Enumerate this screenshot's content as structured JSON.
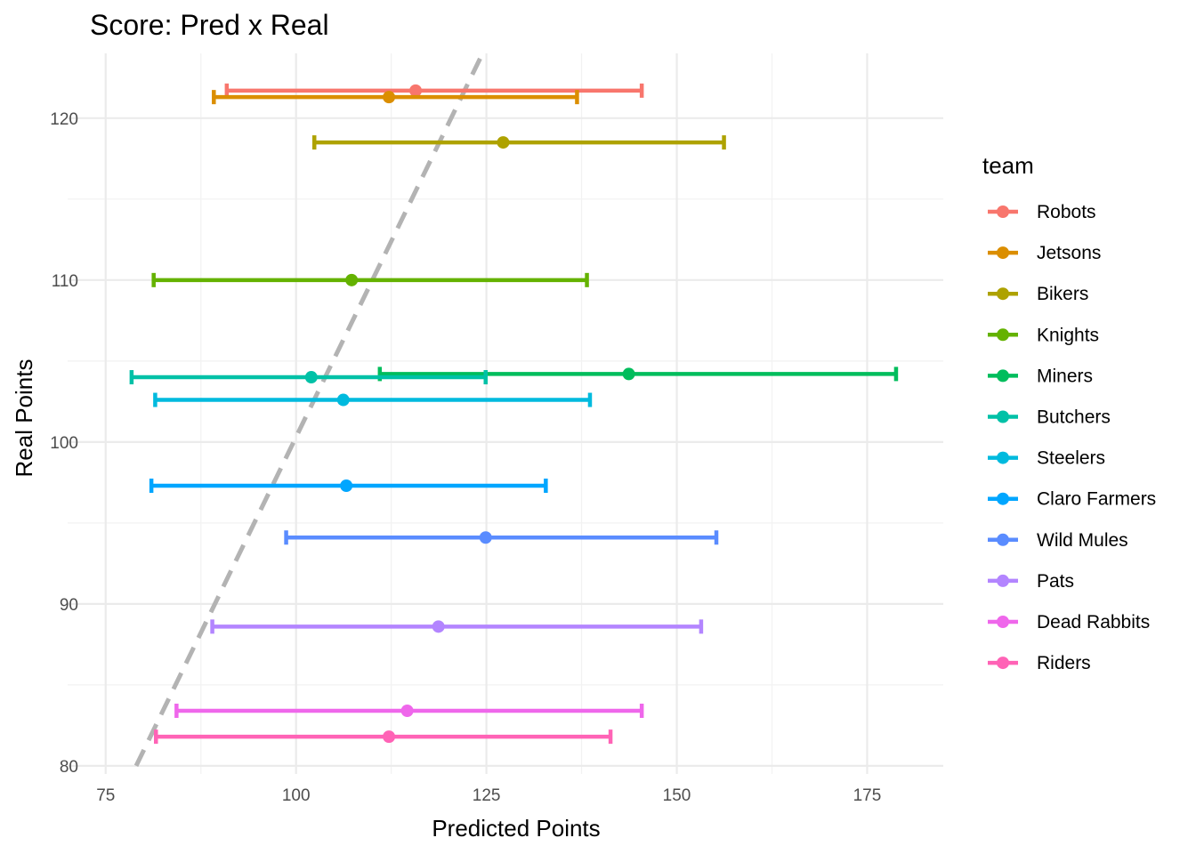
{
  "chart_data": {
    "type": "errorbar-scatter",
    "title": "Score: Pred x Real",
    "xlabel": "Predicted Points",
    "ylabel": "Real Points",
    "xlim": [
      70,
      185
    ],
    "ylim": [
      79.5,
      124
    ],
    "xticks": [
      75,
      100,
      125,
      150,
      175
    ],
    "yticks": [
      80,
      90,
      100,
      110,
      120
    ],
    "grid": true,
    "legend": {
      "title": "team",
      "position": "right"
    },
    "reference_line": {
      "style": "dashed",
      "color": "#b3b3b3",
      "x": [
        79,
        124.5
      ],
      "y": [
        80,
        124
      ]
    },
    "series": [
      {
        "name": "Robots",
        "color": "#F8766D",
        "x": 115.7,
        "y": 121.7,
        "xmin": 90.9,
        "xmax": 145.4
      },
      {
        "name": "Jetsons",
        "color": "#DB8E00",
        "x": 112.2,
        "y": 121.3,
        "xmin": 89.2,
        "xmax": 136.9
      },
      {
        "name": "Bikers",
        "color": "#AEA200",
        "x": 127.2,
        "y": 118.5,
        "xmin": 102.4,
        "xmax": 156.2
      },
      {
        "name": "Knights",
        "color": "#64B200",
        "x": 107.3,
        "y": 110.0,
        "xmin": 81.3,
        "xmax": 138.2
      },
      {
        "name": "Miners",
        "color": "#00BD5C",
        "x": 143.7,
        "y": 104.2,
        "xmin": 111.0,
        "xmax": 178.8
      },
      {
        "name": "Butchers",
        "color": "#00C1A7",
        "x": 102.0,
        "y": 104.0,
        "xmin": 78.4,
        "xmax": 124.9
      },
      {
        "name": "Steelers",
        "color": "#00BADE",
        "x": 106.2,
        "y": 102.6,
        "xmin": 81.5,
        "xmax": 138.6
      },
      {
        "name": "Claro Farmers",
        "color": "#00A6FF",
        "x": 106.6,
        "y": 97.3,
        "xmin": 81.0,
        "xmax": 132.8
      },
      {
        "name": "Wild Mules",
        "color": "#5A8CFF",
        "x": 124.9,
        "y": 94.1,
        "xmin": 98.7,
        "xmax": 155.2
      },
      {
        "name": "Pats",
        "color": "#B385FF",
        "x": 118.7,
        "y": 88.6,
        "xmin": 89.0,
        "xmax": 153.2
      },
      {
        "name": "Dead Rabbits",
        "color": "#EF67EB",
        "x": 114.6,
        "y": 83.4,
        "xmin": 84.3,
        "xmax": 145.4
      },
      {
        "name": "Riders",
        "color": "#FF63B6",
        "x": 112.2,
        "y": 81.8,
        "xmin": 81.6,
        "xmax": 141.3
      }
    ]
  }
}
